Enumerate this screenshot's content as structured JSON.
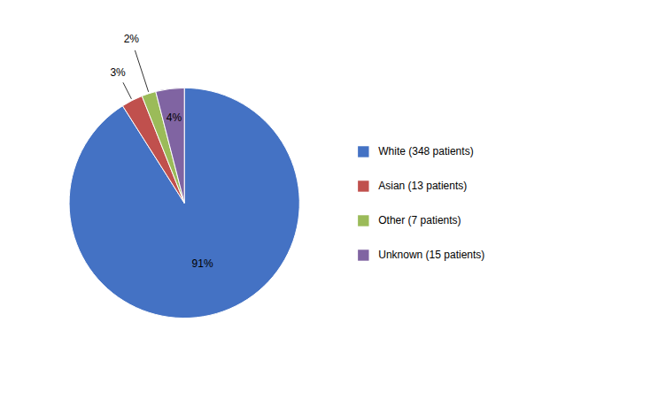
{
  "chart_data": {
    "type": "pie",
    "categories": [
      "White (348 patients)",
      "Asian (13 patients)",
      "Other (7 patients)",
      "Unknown (15 patients)"
    ],
    "values": [
      91,
      3,
      2,
      4
    ],
    "value_labels": [
      "91%",
      "3%",
      "2%",
      "4%"
    ],
    "colors": [
      "#4472C4",
      "#C0504D",
      "#9BBB59",
      "#8064A2"
    ],
    "data_labels": true,
    "legend": "right"
  }
}
